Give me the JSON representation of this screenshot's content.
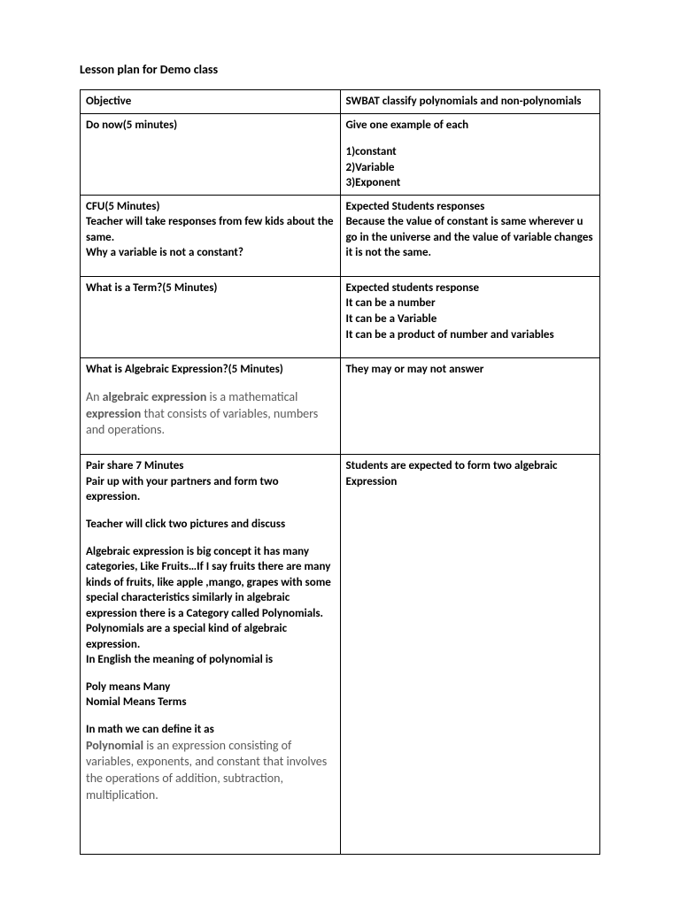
{
  "title": "Lesson plan for Demo class",
  "rows": [
    {
      "left": {
        "lines": [
          {
            "text": "Objective",
            "bold": true
          }
        ]
      },
      "right": {
        "lines": [
          {
            "text": "SWBAT classify polynomials and non-polynomials",
            "bold": true
          }
        ]
      }
    },
    {
      "left": {
        "lines": [
          {
            "text": "Do now(5 minutes)",
            "bold": true
          }
        ]
      },
      "right": {
        "lines": [
          {
            "text": "Give one example of each",
            "bold": true
          },
          {
            "text": "",
            "bold": false
          },
          {
            "text": "1)constant",
            "bold": true
          },
          {
            "text": "2)Variable",
            "bold": true
          },
          {
            "text": "3)Exponent",
            "bold": true
          }
        ]
      }
    },
    {
      "left": {
        "lines": [
          {
            "text": "CFU(5 Minutes)",
            "bold": true
          },
          {
            "text": "Teacher will take responses from few kids about the same.",
            "bold": true
          },
          {
            "text": "Why a variable is not a constant?",
            "bold": true
          },
          {
            "text": "",
            "bold": false
          }
        ]
      },
      "right": {
        "lines": [
          {
            "text": "Expected Students responses",
            "bold": true
          },
          {
            "text": "Because the value of constant is same wherever u go in the universe and the value of variable changes it is not the same.",
            "bold": true
          }
        ]
      }
    },
    {
      "left": {
        "lines": [
          {
            "text": "What is a Term?(5 Minutes)",
            "bold": true
          }
        ]
      },
      "right": {
        "lines": [
          {
            "text": "Expected students response",
            "bold": true
          },
          {
            "text": "It can be a number",
            "bold": true
          },
          {
            "text": "It can be a Variable",
            "bold": true
          },
          {
            "text": "It can be a product of number and variables",
            "bold": true
          },
          {
            "text": "",
            "bold": false
          }
        ]
      }
    },
    {
      "left": {
        "lines": [
          {
            "text": "What is Algebraic Expression?(5 Minutes)",
            "bold": true
          },
          {
            "text": "",
            "bold": false
          }
        ],
        "definition": {
          "prefix": "An ",
          "b1": "algebraic expression",
          "mid": " is a mathematical ",
          "b2": "expression",
          "suffix": " that consists of variables, numbers and operations."
        },
        "trailing_blank": true
      },
      "right": {
        "lines": [
          {
            "text": "They may or may not answer",
            "bold": true
          }
        ]
      }
    },
    {
      "left": {
        "lines": [
          {
            "text": "Pair share 7 Minutes",
            "bold": true
          },
          {
            "text": "Pair up with your partners and form two expression.",
            "bold": true
          },
          {
            "text": "",
            "bold": false
          },
          {
            "text": "Teacher will click two pictures and discuss",
            "bold": true
          },
          {
            "text": "",
            "bold": false
          },
          {
            "text": "Algebraic expression is big concept it has many categories, Like  Fruits…If  I say fruits there are many kinds of fruits, like apple ,mango, grapes with some special characteristics similarly in algebraic expression there is a Category called Polynomials.",
            "bold": true
          },
          {
            "text": "Polynomials are a special kind of algebraic expression.",
            "bold": true
          },
          {
            "text": "In English the meaning of polynomial is",
            "bold": true
          },
          {
            "text": "",
            "bold": false
          },
          {
            "text": "Poly means Many",
            "bold": true
          },
          {
            "text": "Nomial Means Terms",
            "bold": true
          },
          {
            "text": "",
            "bold": false
          },
          {
            "text": "In math we can define it as",
            "bold": true
          }
        ],
        "poly_def": {
          "b": "Polynomial",
          "rest": " is an expression consisting of variables, exponents, and constant that involves the operations of addition, subtraction, multiplication."
        },
        "tail_blanks": 4
      },
      "right": {
        "lines": [
          {
            "text": "Students are expected to form two algebraic Expression",
            "bold": true
          }
        ]
      }
    }
  ]
}
